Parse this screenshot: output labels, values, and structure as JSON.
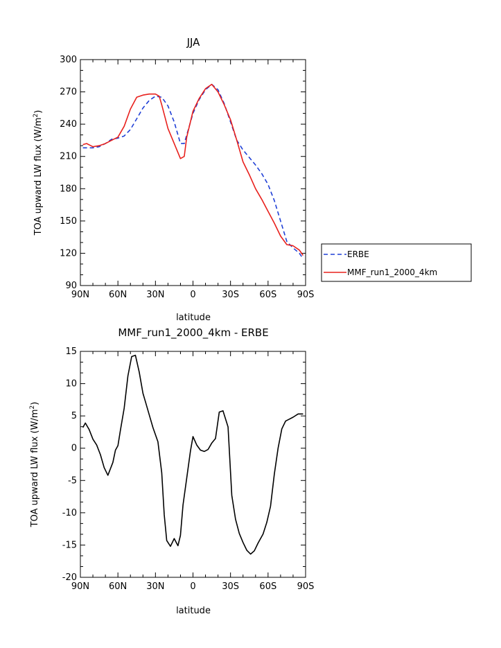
{
  "chart_data": [
    {
      "type": "line",
      "title": "JJA",
      "xlabel": "latitude",
      "ylabel": "TOA upward LW flux (W/m²)",
      "ylabel_parts": {
        "main": "TOA upward LW flux (W/m",
        "sup": "2",
        "end": ")"
      },
      "xlim": [
        90,
        -90
      ],
      "ylim": [
        90,
        300
      ],
      "xtick_values": [
        90,
        60,
        30,
        0,
        -30,
        -60,
        -90
      ],
      "xtick_labels": [
        "90N",
        "60N",
        "30N",
        "0",
        "30S",
        "60S",
        "90S"
      ],
      "ytick_values": [
        90,
        120,
        150,
        180,
        210,
        240,
        270,
        300
      ],
      "ytick_labels": [
        "90",
        "120",
        "150",
        "180",
        "210",
        "240",
        "270",
        "300"
      ],
      "legend": [
        {
          "label": "ERBE",
          "color": "#1f3fd6",
          "dash": true
        },
        {
          "label": "MMF_run1_2000_4km",
          "color": "#e8201c",
          "dash": false
        }
      ],
      "series": [
        {
          "name": "ERBE",
          "color": "#1f3fd6",
          "dashed": true,
          "x": [
            88,
            80,
            75,
            70,
            65,
            60,
            55,
            50,
            45,
            40,
            35,
            30,
            25,
            20,
            15,
            10,
            7,
            5,
            0,
            -5,
            -10,
            -15,
            -20,
            -25,
            -30,
            -35,
            -40,
            -45,
            -50,
            -55,
            -60,
            -65,
            -70,
            -75,
            -80,
            -85,
            -88
          ],
          "y": [
            218,
            218,
            219,
            222,
            226,
            227,
            229,
            235,
            245,
            255,
            262,
            266,
            265,
            257,
            242,
            222,
            222,
            230,
            250,
            263,
            272,
            277,
            272,
            259,
            242,
            225,
            216,
            209,
            202,
            194,
            184,
            169,
            150,
            131,
            125,
            120,
            115
          ]
        },
        {
          "name": "MMF_run1_2000_4km",
          "color": "#e8201c",
          "dashed": false,
          "x": [
            88,
            85,
            80,
            75,
            70,
            65,
            60,
            55,
            50,
            45,
            40,
            35,
            30,
            27,
            25,
            20,
            15,
            10,
            7,
            5,
            0,
            -5,
            -10,
            -15,
            -20,
            -25,
            -30,
            -35,
            -40,
            -45,
            -50,
            -55,
            -60,
            -65,
            -70,
            -75,
            -80,
            -85,
            -88
          ],
          "y": [
            221,
            222,
            219,
            220,
            222,
            225,
            228,
            238,
            254,
            265,
            267,
            268,
            268,
            266,
            258,
            236,
            222,
            208,
            210,
            228,
            252,
            264,
            273,
            277,
            270,
            258,
            244,
            225,
            205,
            193,
            180,
            170,
            159,
            148,
            136,
            128,
            127,
            123,
            118
          ]
        }
      ]
    },
    {
      "type": "line",
      "title": "MMF_run1_2000_4km - ERBE",
      "xlabel": "latitude",
      "ylabel": "TOA upward LW flux (W/m²)",
      "ylabel_parts": {
        "main": "TOA upward LW flux (W/m",
        "sup": "2",
        "end": ")"
      },
      "xlim": [
        90,
        -90
      ],
      "ylim": [
        -20,
        15
      ],
      "xtick_values": [
        90,
        60,
        30,
        0,
        -30,
        -60,
        -90
      ],
      "xtick_labels": [
        "90N",
        "60N",
        "30N",
        "0",
        "30S",
        "60S",
        "90S"
      ],
      "ytick_values": [
        -20,
        -15,
        -10,
        -5,
        0,
        5,
        10,
        15
      ],
      "ytick_labels": [
        "-20",
        "-15",
        "-10",
        "-5",
        "0",
        "5",
        "10",
        "15"
      ],
      "series": [
        {
          "color": "#000000",
          "dashed": false,
          "x": [
            88,
            86,
            83,
            80,
            77,
            74,
            71,
            68,
            64,
            62,
            60,
            58,
            55,
            52,
            49,
            46,
            43,
            40,
            38,
            35,
            32,
            28,
            25,
            23,
            21,
            18,
            15,
            12,
            10,
            8,
            5,
            2,
            0,
            -3,
            -6,
            -9,
            -12,
            -15,
            -18,
            -21,
            -24,
            -28,
            -31,
            -34,
            -37,
            -40,
            -43,
            -46,
            -49,
            -52,
            -56,
            -59,
            -62,
            -65,
            -68,
            -71,
            -74,
            -77,
            -80,
            -84,
            -88
          ],
          "y": [
            3.2,
            3.9,
            2.9,
            1.4,
            0.5,
            -1,
            -3,
            -4.2,
            -2.2,
            -0.3,
            0.4,
            2.8,
            6.2,
            11.2,
            14.2,
            14.4,
            11.8,
            8.5,
            7.2,
            5.2,
            3.2,
            1,
            -3.8,
            -10.3,
            -14.3,
            -15.2,
            -14,
            -15.1,
            -13.5,
            -8.8,
            -4.6,
            -0.4,
            1.8,
            0.5,
            -0.3,
            -0.5,
            -0.2,
            0.8,
            1.5,
            5.6,
            5.8,
            3.3,
            -7.3,
            -11,
            -13.2,
            -14.6,
            -15.8,
            -16.4,
            -15.9,
            -14.7,
            -13.3,
            -11.5,
            -9,
            -4,
            0,
            3,
            4.2,
            4.5,
            4.8,
            5.3,
            5.3
          ]
        }
      ]
    }
  ]
}
